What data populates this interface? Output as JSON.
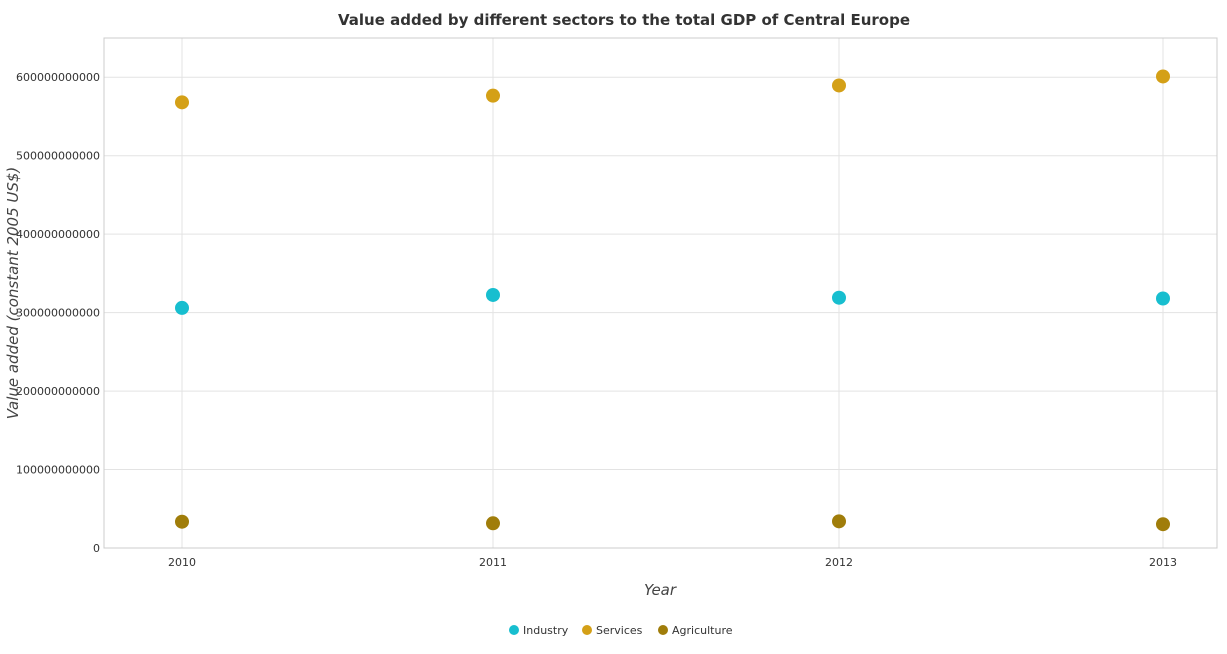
{
  "chart_data": {
    "type": "scatter",
    "title": "Value added by different sectors to the total GDP of Central Europe",
    "xlabel": "Year",
    "ylabel": "Value added (constant 2005 US$)",
    "categories": [
      "2010",
      "2011",
      "2012",
      "2013"
    ],
    "ylim": [
      0,
      650000000000
    ],
    "yticks": [
      0,
      100000000000,
      200000000000,
      300000000000,
      400000000000,
      500000000000,
      600000000000
    ],
    "ytick_labels": [
      "0",
      "100000000000",
      "200000000000",
      "300000000000",
      "400000000000",
      "500000000000",
      "600000000000"
    ],
    "grid": true,
    "legend_position": "bottom-center",
    "series": [
      {
        "name": "Industry",
        "color": "#17becf",
        "values": [
          306000000000,
          322500000000,
          319000000000,
          318000000000
        ]
      },
      {
        "name": "Services",
        "color": "#d4a017",
        "values": [
          568000000000,
          576500000000,
          589500000000,
          601000000000
        ]
      },
      {
        "name": "Agriculture",
        "color": "#a07d0a",
        "values": [
          33500000000,
          31500000000,
          34000000000,
          30300000000
        ]
      }
    ]
  }
}
